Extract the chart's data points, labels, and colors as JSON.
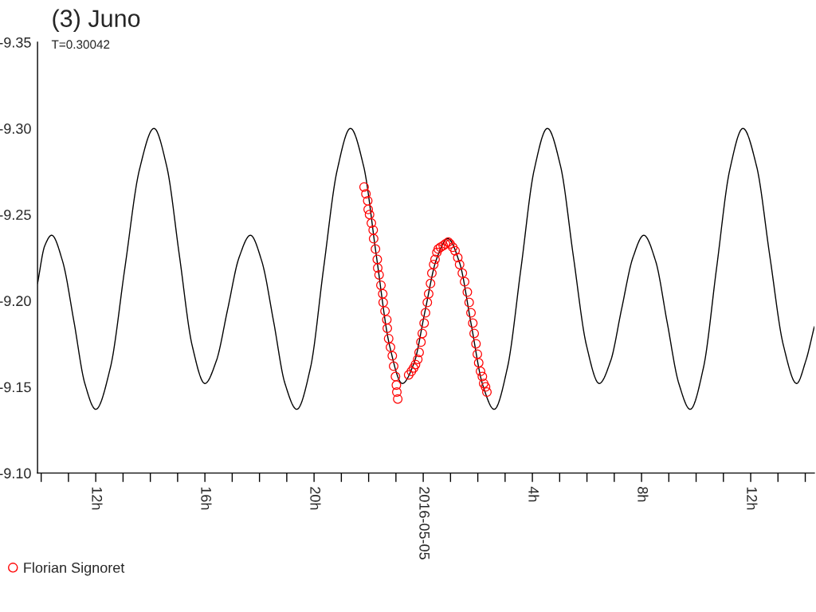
{
  "chart_data": {
    "type": "scatter",
    "title": "(3) Juno",
    "subtitle": "T=0.30042",
    "xlim": [
      "2016-05-04T09:52",
      "2016-05-05T14:20"
    ],
    "ylim": [
      -9.1,
      -9.35
    ],
    "xticks": [
      {
        "value": "2016-05-04T10:00",
        "label": null
      },
      {
        "value": "2016-05-04T11:00",
        "label": null
      },
      {
        "value": "2016-05-04T12:00",
        "label": "12h"
      },
      {
        "value": "2016-05-04T13:00",
        "label": null
      },
      {
        "value": "2016-05-04T14:00",
        "label": null
      },
      {
        "value": "2016-05-04T15:00",
        "label": null
      },
      {
        "value": "2016-05-04T16:00",
        "label": "16h"
      },
      {
        "value": "2016-05-04T17:00",
        "label": null
      },
      {
        "value": "2016-05-04T18:00",
        "label": null
      },
      {
        "value": "2016-05-04T19:00",
        "label": null
      },
      {
        "value": "2016-05-04T20:00",
        "label": "20h"
      },
      {
        "value": "2016-05-04T21:00",
        "label": null
      },
      {
        "value": "2016-05-04T22:00",
        "label": null
      },
      {
        "value": "2016-05-04T23:00",
        "label": null
      },
      {
        "value": "2016-05-05T00:00",
        "label": "2016-05-05"
      },
      {
        "value": "2016-05-05T01:00",
        "label": null
      },
      {
        "value": "2016-05-05T02:00",
        "label": null
      },
      {
        "value": "2016-05-05T03:00",
        "label": null
      },
      {
        "value": "2016-05-05T04:00",
        "label": "4h"
      },
      {
        "value": "2016-05-05T05:00",
        "label": null
      },
      {
        "value": "2016-05-05T06:00",
        "label": null
      },
      {
        "value": "2016-05-05T07:00",
        "label": null
      },
      {
        "value": "2016-05-05T08:00",
        "label": "8h"
      },
      {
        "value": "2016-05-05T09:00",
        "label": null
      },
      {
        "value": "2016-05-05T10:00",
        "label": null
      },
      {
        "value": "2016-05-05T11:00",
        "label": null
      },
      {
        "value": "2016-05-05T12:00",
        "label": "12h"
      },
      {
        "value": "2016-05-05T13:00",
        "label": null
      },
      {
        "value": "2016-05-05T14:00",
        "label": null
      }
    ],
    "yticks": [
      {
        "value": -9.35,
        "label": "-9.35"
      },
      {
        "value": -9.3,
        "label": "-9.30"
      },
      {
        "value": -9.25,
        "label": "-9.25"
      },
      {
        "value": -9.2,
        "label": "-9.20"
      },
      {
        "value": -9.15,
        "label": "-9.15"
      },
      {
        "value": -9.1,
        "label": "-9.10"
      }
    ],
    "grid": false,
    "legend": "bottom left",
    "series": [
      {
        "type": "line",
        "color": "#000000",
        "x": [
          "2016-05-04T09:52",
          "2016-05-04T10:08",
          "2016-05-04T10:23",
          "2016-05-04T10:47",
          "2016-05-04T11:12",
          "2016-05-04T11:36",
          "2016-05-04T12:00",
          "2016-05-04T12:32",
          "2016-05-04T13:04",
          "2016-05-04T13:36",
          "2016-05-04T14:08",
          "2016-05-04T14:36",
          "2016-05-04T15:04",
          "2016-05-04T15:32",
          "2016-05-04T16:00",
          "2016-05-04T16:25",
          "2016-05-04T16:50",
          "2016-05-04T17:15",
          "2016-05-04T17:40",
          "2016-05-04T18:05",
          "2016-05-04T18:31",
          "2016-05-04T18:56",
          "2016-05-04T19:22",
          "2016-05-04T19:52",
          "2016-05-04T20:21",
          "2016-05-04T20:51",
          "2016-05-04T21:20",
          "2016-05-04T21:49",
          "2016-05-04T22:17",
          "2016-05-04T22:46",
          "2016-05-04T23:14",
          "2016-05-04T23:40",
          "2016-05-05T00:04",
          "2016-05-05T00:29",
          "2016-05-05T00:54",
          "2016-05-05T01:20",
          "2016-05-05T01:45",
          "2016-05-05T02:11",
          "2016-05-05T02:36",
          "2016-05-05T03:05",
          "2016-05-05T03:35",
          "2016-05-05T04:04",
          "2016-05-05T04:33",
          "2016-05-05T05:02",
          "2016-05-05T05:30",
          "2016-05-05T05:59",
          "2016-05-05T06:27",
          "2016-05-05T06:52",
          "2016-05-05T07:16",
          "2016-05-05T07:41",
          "2016-05-05T08:05",
          "2016-05-05T08:31",
          "2016-05-05T08:56",
          "2016-05-05T09:22",
          "2016-05-05T09:47",
          "2016-05-05T10:16",
          "2016-05-05T10:45",
          "2016-05-05T11:14",
          "2016-05-05T11:43",
          "2016-05-05T12:13",
          "2016-05-05T12:42",
          "2016-05-05T13:12",
          "2016-05-05T13:41",
          "2016-05-05T14:01",
          "2016-05-05T14:20"
        ],
        "values": [
          -9.21,
          -9.232,
          -9.238,
          -9.223,
          -9.188,
          -9.152,
          -9.137,
          -9.161,
          -9.219,
          -9.276,
          -9.3,
          -9.278,
          -9.226,
          -9.174,
          -9.152,
          -9.165,
          -9.195,
          -9.225,
          -9.238,
          -9.223,
          -9.188,
          -9.152,
          -9.137,
          -9.161,
          -9.219,
          -9.276,
          -9.3,
          -9.278,
          -9.226,
          -9.174,
          -9.152,
          -9.164,
          -9.194,
          -9.224,
          -9.236,
          -9.222,
          -9.187,
          -9.151,
          -9.137,
          -9.161,
          -9.219,
          -9.276,
          -9.3,
          -9.278,
          -9.226,
          -9.174,
          -9.152,
          -9.165,
          -9.195,
          -9.225,
          -9.238,
          -9.223,
          -9.188,
          -9.152,
          -9.137,
          -9.161,
          -9.219,
          -9.276,
          -9.3,
          -9.278,
          -9.226,
          -9.174,
          -9.152,
          -9.165,
          -9.185
        ]
      },
      {
        "name": "Florian Signoret",
        "color": "#ff0000",
        "marker": "circle",
        "x": [
          "2016-05-04T21:50",
          "2016-05-04T21:54",
          "2016-05-04T21:58",
          "2016-05-04T21:59",
          "2016-05-04T22:02",
          "2016-05-04T22:06",
          "2016-05-04T22:10",
          "2016-05-04T22:11",
          "2016-05-04T22:15",
          "2016-05-04T22:19",
          "2016-05-04T22:20",
          "2016-05-04T22:23",
          "2016-05-04T22:27",
          "2016-05-04T22:31",
          "2016-05-04T22:32",
          "2016-05-04T22:36",
          "2016-05-04T22:40",
          "2016-05-04T22:41",
          "2016-05-04T22:44",
          "2016-05-04T22:48",
          "2016-05-04T22:52",
          "2016-05-04T22:55",
          "2016-05-04T22:59",
          "2016-05-04T23:01",
          "2016-05-04T23:02",
          "2016-05-04T23:04",
          "2016-05-04T23:28",
          "2016-05-04T23:34",
          "2016-05-04T23:39",
          "2016-05-04T23:43",
          "2016-05-04T23:48",
          "2016-05-04T23:51",
          "2016-05-04T23:55",
          "2016-05-04T23:58",
          "2016-05-05T00:02",
          "2016-05-05T00:05",
          "2016-05-05T00:09",
          "2016-05-05T00:12",
          "2016-05-05T00:16",
          "2016-05-05T00:19",
          "2016-05-05T00:23",
          "2016-05-05T00:26",
          "2016-05-05T00:30",
          "2016-05-05T00:33",
          "2016-05-05T00:38",
          "2016-05-05T00:44",
          "2016-05-05T00:49",
          "2016-05-05T00:55",
          "2016-05-05T00:59",
          "2016-05-05T01:05",
          "2016-05-05T01:10",
          "2016-05-05T01:16",
          "2016-05-05T01:20",
          "2016-05-05T01:26",
          "2016-05-05T01:31",
          "2016-05-05T01:37",
          "2016-05-05T01:41",
          "2016-05-05T01:45",
          "2016-05-05T01:49",
          "2016-05-05T01:52",
          "2016-05-05T01:56",
          "2016-05-05T01:59",
          "2016-05-05T02:02",
          "2016-05-05T02:06",
          "2016-05-05T02:10",
          "2016-05-05T02:13",
          "2016-05-05T02:17",
          "2016-05-05T02:20"
        ],
        "values": [
          -9.266,
          -9.262,
          -9.258,
          -9.253,
          -9.25,
          -9.245,
          -9.241,
          -9.236,
          -9.23,
          -9.224,
          -9.219,
          -9.215,
          -9.209,
          -9.204,
          -9.199,
          -9.194,
          -9.189,
          -9.184,
          -9.178,
          -9.173,
          -9.168,
          -9.162,
          -9.156,
          -9.151,
          -9.147,
          -9.143,
          -9.157,
          -9.159,
          -9.161,
          -9.163,
          -9.166,
          -9.17,
          -9.176,
          -9.181,
          -9.187,
          -9.193,
          -9.199,
          -9.204,
          -9.21,
          -9.216,
          -9.221,
          -9.224,
          -9.228,
          -9.23,
          -9.231,
          -9.232,
          -9.233,
          -9.234,
          -9.233,
          -9.231,
          -9.229,
          -9.225,
          -9.221,
          -9.216,
          -9.211,
          -9.205,
          -9.199,
          -9.193,
          -9.187,
          -9.181,
          -9.175,
          -9.169,
          -9.164,
          -9.159,
          -9.156,
          -9.152,
          -9.15,
          -9.147
        ]
      }
    ]
  }
}
